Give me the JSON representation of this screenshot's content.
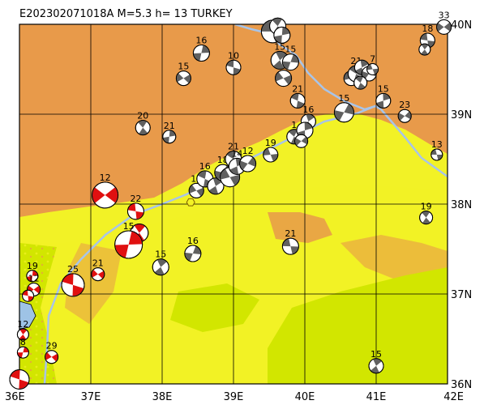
{
  "title": "E202302071018A  M=5.3  h=  13  TURKEY",
  "colors": {
    "sea": "#9ec3e6",
    "low": "#d2e600",
    "mid": "#f2f226",
    "high": "#e89a4a",
    "plate_boundary": "#a8c4e8",
    "compression": "#e01010",
    "beachball_dark": "#606060",
    "grid": "#000000"
  },
  "axes": {
    "lon_labels": [
      "36E",
      "37E",
      "38E",
      "39E",
      "40E",
      "41E",
      "42E"
    ],
    "lat_labels": [
      "40N",
      "39N",
      "38N",
      "37N",
      "36N"
    ],
    "lon_range": [
      36,
      42
    ],
    "lat_range": [
      36,
      40
    ]
  },
  "mechanisms": [
    {
      "lon": 39.55,
      "lat": 39.92,
      "depth": "",
      "r": 14
    },
    {
      "lon": 39.62,
      "lat": 39.98,
      "depth": "",
      "r": 10
    },
    {
      "lon": 39.68,
      "lat": 39.88,
      "depth": "",
      "r": 10
    },
    {
      "lon": 41.95,
      "lat": 39.97,
      "depth": "33",
      "r": 9
    },
    {
      "lon": 41.72,
      "lat": 39.82,
      "depth": "18",
      "r": 9
    },
    {
      "lon": 41.68,
      "lat": 39.72,
      "depth": "",
      "r": 7
    },
    {
      "lon": 38.55,
      "lat": 39.68,
      "depth": "16",
      "r": 10
    },
    {
      "lon": 38.3,
      "lat": 39.4,
      "depth": "15",
      "r": 9
    },
    {
      "lon": 39.0,
      "lat": 39.52,
      "depth": "10",
      "r": 9
    },
    {
      "lon": 39.65,
      "lat": 39.6,
      "depth": "15",
      "r": 11
    },
    {
      "lon": 39.8,
      "lat": 39.58,
      "depth": "15",
      "r": 10
    },
    {
      "lon": 39.7,
      "lat": 39.4,
      "depth": "",
      "r": 10
    },
    {
      "lon": 39.9,
      "lat": 39.15,
      "depth": "21",
      "r": 9
    },
    {
      "lon": 40.05,
      "lat": 38.92,
      "depth": "16",
      "r": 9
    },
    {
      "lon": 40.55,
      "lat": 39.02,
      "depth": "15",
      "r": 12
    },
    {
      "lon": 40.65,
      "lat": 39.4,
      "depth": "",
      "r": 9
    },
    {
      "lon": 40.72,
      "lat": 39.45,
      "depth": "21",
      "r": 10
    },
    {
      "lon": 40.8,
      "lat": 39.52,
      "depth": "",
      "r": 9
    },
    {
      "lon": 40.9,
      "lat": 39.45,
      "depth": "",
      "r": 9
    },
    {
      "lon": 40.95,
      "lat": 39.5,
      "depth": "7",
      "r": 7
    },
    {
      "lon": 40.78,
      "lat": 39.35,
      "depth": "",
      "r": 8
    },
    {
      "lon": 41.1,
      "lat": 39.15,
      "depth": "15",
      "r": 9
    },
    {
      "lon": 41.4,
      "lat": 38.98,
      "depth": "23",
      "r": 8
    },
    {
      "lon": 41.85,
      "lat": 38.55,
      "depth": "13",
      "r": 7
    },
    {
      "lon": 37.73,
      "lat": 38.85,
      "depth": "20",
      "r": 9
    },
    {
      "lon": 38.1,
      "lat": 38.75,
      "depth": "21",
      "r": 8
    },
    {
      "lon": 37.2,
      "lat": 38.1,
      "depth": "12",
      "r": 16
    },
    {
      "lon": 37.63,
      "lat": 37.92,
      "depth": "22",
      "r": 10
    },
    {
      "lon": 37.68,
      "lat": 37.68,
      "depth": "",
      "r": 11
    },
    {
      "lon": 37.53,
      "lat": 37.55,
      "depth": "15",
      "r": 17
    },
    {
      "lon": 37.1,
      "lat": 37.22,
      "depth": "21",
      "r": 8
    },
    {
      "lon": 36.75,
      "lat": 37.1,
      "depth": "25",
      "r": 14
    },
    {
      "lon": 37.98,
      "lat": 37.3,
      "depth": "15",
      "r": 10
    },
    {
      "lon": 38.43,
      "lat": 37.45,
      "depth": "16",
      "r": 10
    },
    {
      "lon": 38.48,
      "lat": 38.15,
      "depth": "18",
      "r": 9
    },
    {
      "lon": 38.6,
      "lat": 38.28,
      "depth": "16",
      "r": 10
    },
    {
      "lon": 38.75,
      "lat": 38.2,
      "depth": "",
      "r": 10
    },
    {
      "lon": 38.85,
      "lat": 38.35,
      "depth": "18",
      "r": 10
    },
    {
      "lon": 38.95,
      "lat": 38.3,
      "depth": "",
      "r": 12
    },
    {
      "lon": 39.0,
      "lat": 38.5,
      "depth": "21",
      "r": 10
    },
    {
      "lon": 39.05,
      "lat": 38.42,
      "depth": "14",
      "r": 10
    },
    {
      "lon": 39.2,
      "lat": 38.45,
      "depth": "12",
      "r": 10
    },
    {
      "lon": 39.52,
      "lat": 38.55,
      "depth": "19",
      "r": 9
    },
    {
      "lon": 39.85,
      "lat": 38.75,
      "depth": "1",
      "r": 9
    },
    {
      "lon": 40.0,
      "lat": 38.82,
      "depth": "",
      "r": 10
    },
    {
      "lon": 39.95,
      "lat": 38.7,
      "depth": "",
      "r": 8
    },
    {
      "lon": 39.8,
      "lat": 37.53,
      "depth": "21",
      "r": 10
    },
    {
      "lon": 41.7,
      "lat": 37.85,
      "depth": "19",
      "r": 8
    },
    {
      "lon": 36.18,
      "lat": 37.2,
      "depth": "19",
      "r": 7
    },
    {
      "lon": 36.2,
      "lat": 37.05,
      "depth": "12",
      "r": 8
    },
    {
      "lon": 36.12,
      "lat": 36.98,
      "depth": "",
      "r": 7
    },
    {
      "lon": 36.05,
      "lat": 36.55,
      "depth": "12",
      "r": 7
    },
    {
      "lon": 36.05,
      "lat": 36.35,
      "depth": "8",
      "r": 7
    },
    {
      "lon": 36.45,
      "lat": 36.3,
      "depth": "29",
      "r": 8
    },
    {
      "lon": 36.0,
      "lat": 36.05,
      "depth": "",
      "r": 12
    },
    {
      "lon": 41.0,
      "lat": 36.2,
      "depth": "15",
      "r": 9
    }
  ],
  "epicenter": {
    "lon": 38.4,
    "lat": 38.02
  }
}
